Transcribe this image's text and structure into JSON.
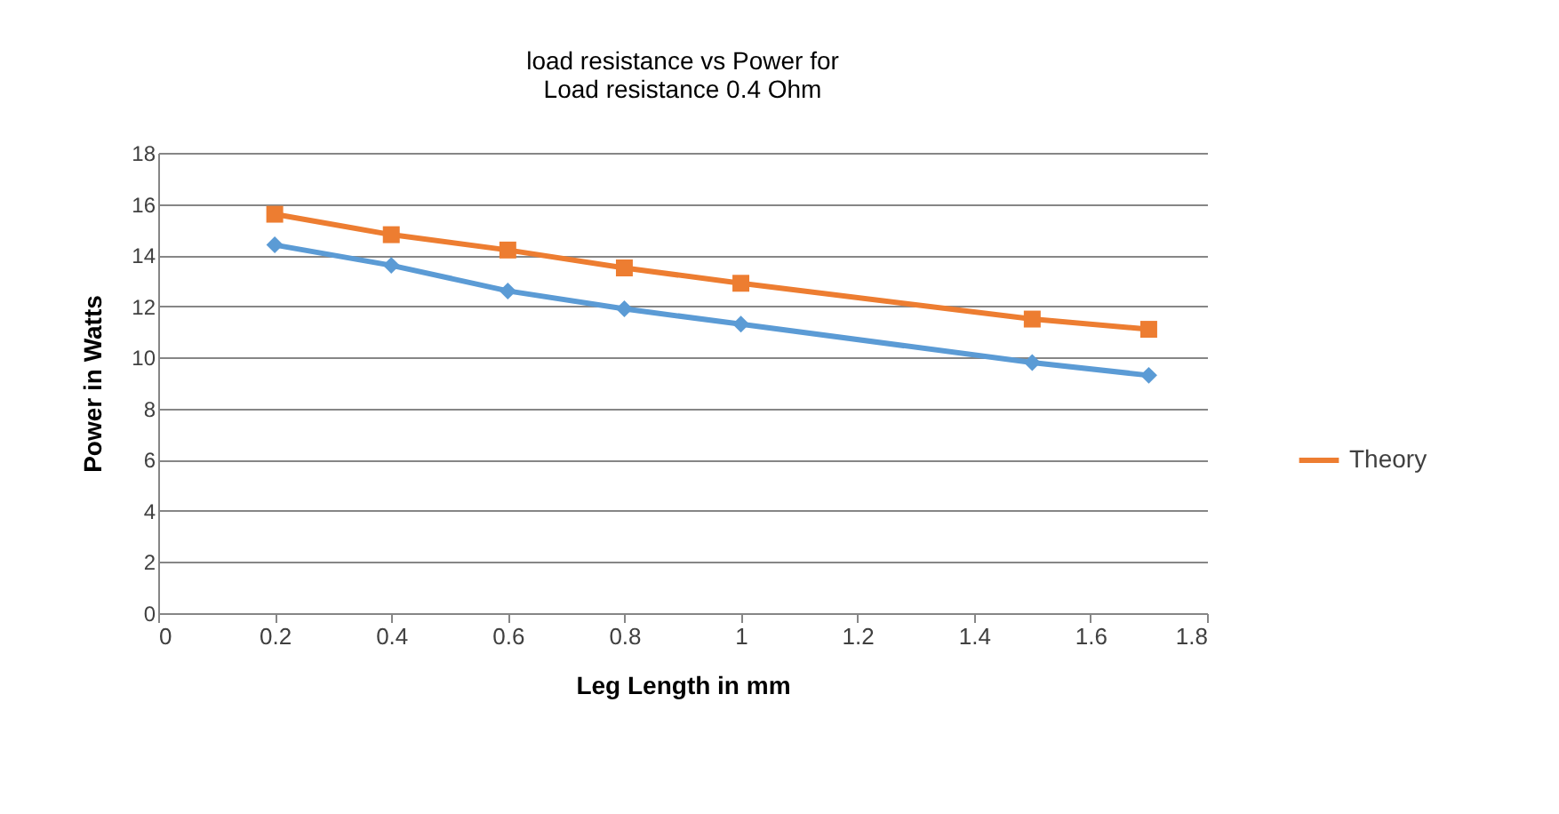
{
  "chart_data": {
    "type": "line",
    "title": "load resistance vs Power for\nLoad resistance 0.4 Ohm",
    "xlabel": "Leg Length in mm",
    "ylabel": "Power in Watts",
    "x": [
      0.2,
      0.4,
      0.6,
      0.8,
      1,
      1.5,
      1.7
    ],
    "series": [
      {
        "color": "#5b9bd5",
        "marker": "diamond",
        "values": [
          14.4,
          13.6,
          12.6,
          11.9,
          11.3,
          9.8,
          9.3
        ]
      },
      {
        "name": "Theory",
        "color": "#ed7d31",
        "marker": "square",
        "values": [
          15.6,
          14.8,
          14.2,
          13.5,
          12.9,
          11.5,
          11.1
        ]
      }
    ],
    "xlim": [
      0,
      1.8
    ],
    "xticks": [
      0,
      0.2,
      0.4,
      0.6,
      0.8,
      1,
      1.2,
      1.4,
      1.6,
      1.8
    ],
    "ylim": [
      0,
      18
    ],
    "yticks": [
      0,
      2,
      4,
      6,
      8,
      10,
      12,
      14,
      16,
      18
    ],
    "grid": "y",
    "legend": "right"
  }
}
